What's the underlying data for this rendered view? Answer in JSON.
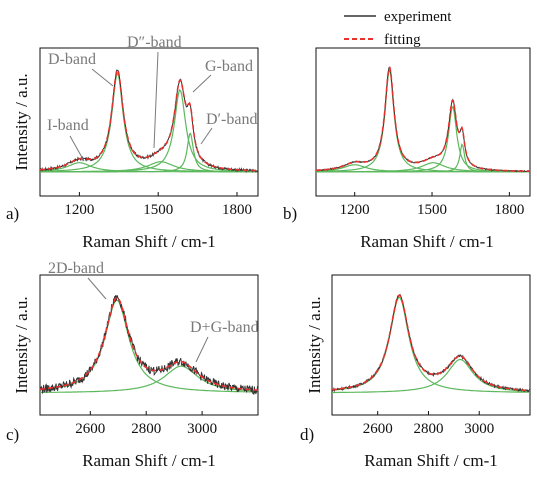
{
  "legend": [
    {
      "label": "experiment",
      "color": "#333333",
      "style": "solid"
    },
    {
      "label": "fitting",
      "color": "#e8312b",
      "style": "dashed"
    }
  ],
  "colors": {
    "experiment": "#333333",
    "fitting": "#e8312b",
    "component": "#5cb85c",
    "annotation": "#7a7a7a"
  },
  "chart_data": [
    {
      "panel": "a)",
      "type": "line",
      "xlabel": "Raman Shift / cm-1",
      "ylabel": "Intensity / a.u.",
      "xlim": [
        1050,
        1880
      ],
      "ylim": [
        0,
        1.15
      ],
      "xticks": [
        1200,
        1500,
        1800
      ],
      "yticks_shown": false,
      "baseline": 0.02,
      "noise": 0.012,
      "components": [
        {
          "name": "I-band",
          "center": 1200,
          "width": 110,
          "height": 0.09
        },
        {
          "name": "D-band",
          "center": 1345,
          "width": 52,
          "height": 0.96
        },
        {
          "name": "D″-band",
          "center": 1510,
          "width": 120,
          "height": 0.1
        },
        {
          "name": "G-band",
          "center": 1583,
          "width": 52,
          "height": 0.8
        },
        {
          "name": "D′-band",
          "center": 1622,
          "width": 28,
          "height": 0.38
        }
      ],
      "annotations": [
        "D-band",
        "I-band",
        "D″-band",
        "G-band",
        "D′-band"
      ]
    },
    {
      "panel": "b)",
      "type": "line",
      "xlabel": "Raman Shift / cm-1",
      "ylabel": "",
      "xlim": [
        1050,
        1880
      ],
      "ylim": [
        0,
        1.15
      ],
      "xticks": [
        1200,
        1500,
        1800
      ],
      "yticks_shown": false,
      "baseline": 0.02,
      "noise": 0.006,
      "components": [
        {
          "name": "I-band",
          "center": 1200,
          "width": 110,
          "height": 0.07
        },
        {
          "name": "D-band",
          "center": 1335,
          "width": 42,
          "height": 1.0
        },
        {
          "name": "D″-band",
          "center": 1505,
          "width": 110,
          "height": 0.09
        },
        {
          "name": "G-band",
          "center": 1580,
          "width": 38,
          "height": 0.64
        },
        {
          "name": "D′-band",
          "center": 1617,
          "width": 22,
          "height": 0.27
        }
      ],
      "annotations": []
    },
    {
      "panel": "c)",
      "type": "line",
      "xlabel": "Raman Shift / cm-1",
      "ylabel": "Intensity / a.u.",
      "xlim": [
        2420,
        3200
      ],
      "ylim": [
        0,
        1.15
      ],
      "xticks": [
        2600,
        2800,
        3000
      ],
      "yticks_shown": false,
      "baseline": 0.0,
      "noise": 0.045,
      "components": [
        {
          "name": "2D-band",
          "center": 2695,
          "width": 105,
          "height": 0.97
        },
        {
          "name": "D+G-band",
          "center": 2925,
          "width": 150,
          "height": 0.28
        }
      ],
      "annotations": [
        "2D-band",
        "D+G-band"
      ]
    },
    {
      "panel": "d)",
      "type": "line",
      "xlabel": "Raman Shift / cm-1",
      "ylabel": "Intensity / a.u.",
      "xlim": [
        2420,
        3200
      ],
      "ylim": [
        0,
        1.15
      ],
      "xticks": [
        2600,
        2800,
        3000
      ],
      "yticks_shown": false,
      "baseline": 0.0,
      "noise": 0.012,
      "components": [
        {
          "name": "2D-band",
          "center": 2685,
          "width": 92,
          "height": 1.0
        },
        {
          "name": "D+G-band",
          "center": 2925,
          "width": 125,
          "height": 0.35
        }
      ],
      "annotations": []
    }
  ]
}
